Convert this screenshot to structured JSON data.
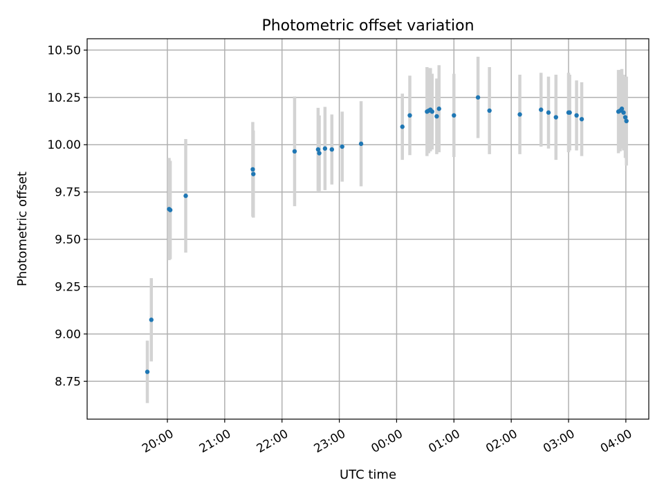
{
  "chart_data": {
    "type": "scatter",
    "title": "Photometric offset variation",
    "xlabel": "UTC time",
    "ylabel": "Photometric offset",
    "x_unit": "hours UTC (values >= 24 are the following day)",
    "xlim": [
      18.6,
      28.4
    ],
    "ylim": [
      8.55,
      10.56
    ],
    "x_ticks": [
      {
        "value": 20,
        "label": "20:00"
      },
      {
        "value": 21,
        "label": "21:00"
      },
      {
        "value": 22,
        "label": "22:00"
      },
      {
        "value": 23,
        "label": "23:00"
      },
      {
        "value": 24,
        "label": "00:00"
      },
      {
        "value": 25,
        "label": "01:00"
      },
      {
        "value": 26,
        "label": "02:00"
      },
      {
        "value": 27,
        "label": "03:00"
      },
      {
        "value": 28,
        "label": "04:00"
      }
    ],
    "y_ticks": [
      {
        "value": 8.75,
        "label": "8.75"
      },
      {
        "value": 9.0,
        "label": "9.00"
      },
      {
        "value": 9.25,
        "label": "9.25"
      },
      {
        "value": 9.5,
        "label": "9.50"
      },
      {
        "value": 9.75,
        "label": "9.75"
      },
      {
        "value": 10.0,
        "label": "10.00"
      },
      {
        "value": 10.25,
        "label": "10.25"
      },
      {
        "value": 10.5,
        "label": "10.50"
      }
    ],
    "grid": true,
    "marker_color": "#1f77b4",
    "errorbar_color": "#d3d3d3",
    "points": [
      {
        "x": 19.65,
        "y": 8.8,
        "err": 0.165
      },
      {
        "x": 19.72,
        "y": 9.075,
        "err": 0.22
      },
      {
        "x": 20.03,
        "y": 9.66,
        "err": 0.27
      },
      {
        "x": 20.05,
        "y": 9.655,
        "err": 0.26
      },
      {
        "x": 20.32,
        "y": 9.73,
        "err": 0.3
      },
      {
        "x": 21.49,
        "y": 9.87,
        "err": 0.25
      },
      {
        "x": 21.5,
        "y": 9.845,
        "err": 0.23
      },
      {
        "x": 22.22,
        "y": 9.965,
        "err": 0.29
      },
      {
        "x": 22.63,
        "y": 9.975,
        "err": 0.22
      },
      {
        "x": 22.65,
        "y": 9.955,
        "err": 0.2
      },
      {
        "x": 22.75,
        "y": 9.98,
        "err": 0.22
      },
      {
        "x": 22.87,
        "y": 9.975,
        "err": 0.185
      },
      {
        "x": 23.05,
        "y": 9.99,
        "err": 0.185
      },
      {
        "x": 23.38,
        "y": 10.005,
        "err": 0.225
      },
      {
        "x": 24.1,
        "y": 10.095,
        "err": 0.175
      },
      {
        "x": 24.23,
        "y": 10.155,
        "err": 0.21
      },
      {
        "x": 24.53,
        "y": 10.175,
        "err": 0.235
      },
      {
        "x": 24.56,
        "y": 10.18,
        "err": 0.225
      },
      {
        "x": 24.59,
        "y": 10.185,
        "err": 0.22
      },
      {
        "x": 24.62,
        "y": 10.175,
        "err": 0.2
      },
      {
        "x": 24.7,
        "y": 10.15,
        "err": 0.2
      },
      {
        "x": 24.74,
        "y": 10.19,
        "err": 0.23
      },
      {
        "x": 25.0,
        "y": 10.155,
        "err": 0.22
      },
      {
        "x": 25.42,
        "y": 10.25,
        "err": 0.215
      },
      {
        "x": 25.62,
        "y": 10.18,
        "err": 0.23
      },
      {
        "x": 26.15,
        "y": 10.16,
        "err": 0.21
      },
      {
        "x": 26.52,
        "y": 10.185,
        "err": 0.195
      },
      {
        "x": 26.65,
        "y": 10.17,
        "err": 0.19
      },
      {
        "x": 26.78,
        "y": 10.145,
        "err": 0.225
      },
      {
        "x": 27.0,
        "y": 10.17,
        "err": 0.21
      },
      {
        "x": 27.02,
        "y": 10.17,
        "err": 0.2
      },
      {
        "x": 27.14,
        "y": 10.155,
        "err": 0.185
      },
      {
        "x": 27.23,
        "y": 10.135,
        "err": 0.195
      },
      {
        "x": 27.87,
        "y": 10.175,
        "err": 0.22
      },
      {
        "x": 27.9,
        "y": 10.18,
        "err": 0.215
      },
      {
        "x": 27.93,
        "y": 10.19,
        "err": 0.21
      },
      {
        "x": 27.96,
        "y": 10.17,
        "err": 0.2
      },
      {
        "x": 27.99,
        "y": 10.145,
        "err": 0.215
      },
      {
        "x": 28.01,
        "y": 10.125,
        "err": 0.235
      }
    ]
  }
}
